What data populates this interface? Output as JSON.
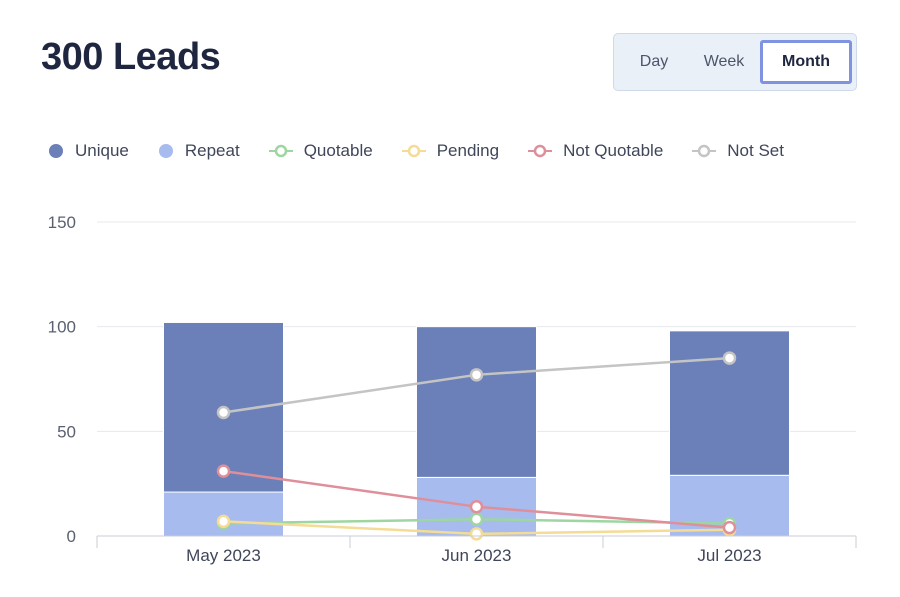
{
  "header": {
    "title": "300 Leads"
  },
  "range_toggle": {
    "options": [
      "Day",
      "Week",
      "Month"
    ],
    "selected": "Month"
  },
  "chart_data": {
    "type": "bar",
    "categories": [
      "May 2023",
      "Jun 2023",
      "Jul 2023"
    ],
    "ylim": [
      0,
      150
    ],
    "yticks": [
      0,
      50,
      100,
      150
    ],
    "grid": true,
    "legend_position": "top-left",
    "stacked_bars": [
      {
        "name": "Unique",
        "color": "#6b80b8",
        "values": [
          81,
          72,
          69
        ]
      },
      {
        "name": "Repeat",
        "color": "#a7bbef",
        "values": [
          21,
          28,
          29
        ]
      }
    ],
    "lines": [
      {
        "name": "Quotable",
        "color": "#9dd6a0",
        "values": [
          6,
          8,
          6
        ]
      },
      {
        "name": "Pending",
        "color": "#f4dc94",
        "values": [
          7,
          1,
          3
        ]
      },
      {
        "name": "Not Quotable",
        "color": "#df8f99",
        "values": [
          31,
          14,
          4
        ]
      },
      {
        "name": "Not Set",
        "color": "#c4c4c4",
        "values": [
          59,
          77,
          85
        ]
      }
    ]
  }
}
